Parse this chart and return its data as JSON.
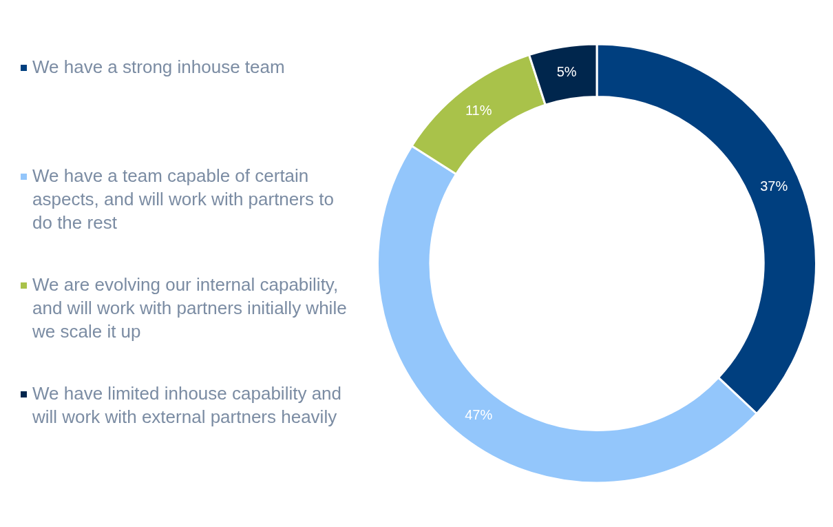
{
  "chart_data": {
    "type": "donut",
    "categories": [
      "We have a strong inhouse team",
      "We have a team capable of certain aspects, and will work with partners to do the rest",
      "We are evolving our internal capability, and will work with partners initially while we scale it up",
      "We have limited inhouse capability and will work with external partners heavily"
    ],
    "values": [
      37,
      47,
      11,
      5
    ],
    "colors": [
      "#003f7f",
      "#93c6fb",
      "#a9c24a",
      "#00264d"
    ],
    "value_labels": [
      "37%",
      "47%",
      "11%",
      "5%"
    ],
    "legend": "left"
  }
}
